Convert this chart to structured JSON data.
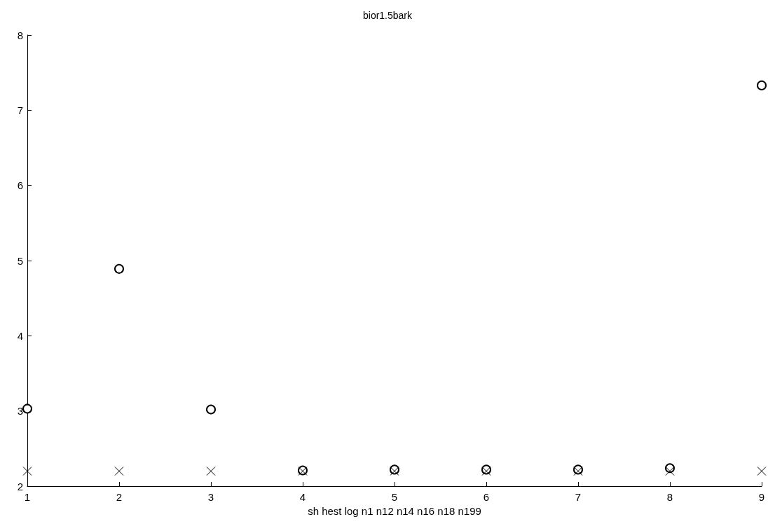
{
  "chart_data": {
    "type": "scatter",
    "title": "bior1.5bark",
    "xlabel": "sh hest log n1 n12 n14 n16 n18 n199",
    "x": [
      1,
      2,
      3,
      4,
      5,
      6,
      7,
      8,
      9
    ],
    "series": [
      {
        "color": "#000000",
        "marker": "circle",
        "values": [
          3.03,
          4.89,
          3.02,
          2.21,
          2.22,
          2.22,
          2.22,
          2.24,
          7.33
        ]
      },
      {
        "color": "#000000",
        "marker": "cross",
        "values": [
          2.2,
          2.2,
          2.2,
          2.2,
          2.2,
          2.2,
          2.2,
          2.2,
          2.2
        ]
      }
    ],
    "xlim": [
      1,
      9
    ],
    "xticks": [
      1,
      2,
      3,
      4,
      5,
      6,
      7,
      8,
      9
    ],
    "ylim": [
      2,
      8
    ],
    "yticks": [
      2,
      3,
      4,
      5,
      6,
      7,
      8
    ],
    "grid": false
  }
}
